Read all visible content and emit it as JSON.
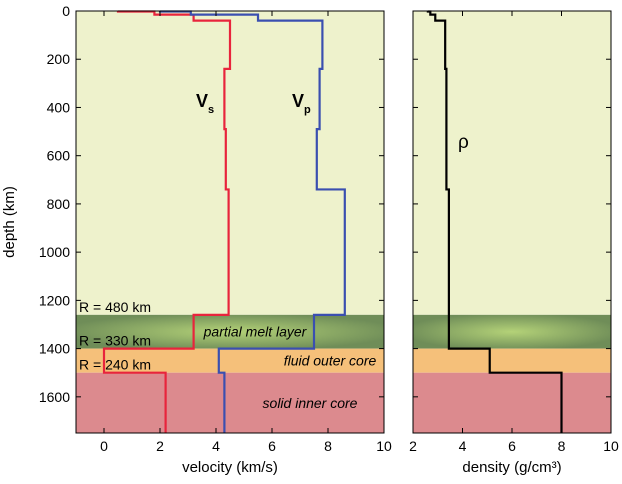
{
  "chart_data": [
    {
      "type": "line",
      "panel": "velocity",
      "xlabel": "velocity (km/s)",
      "ylabel": "depth (km)",
      "xlim": [
        -1,
        10
      ],
      "ylim": [
        1750,
        0
      ],
      "xticks": [
        0,
        2,
        4,
        6,
        8,
        10
      ],
      "yticks": [
        0,
        200,
        400,
        600,
        800,
        1000,
        1200,
        1400,
        1600
      ],
      "grid": false,
      "series": [
        {
          "name": "V",
          "subscript": "s",
          "color": "#e8243c",
          "profile_depths": [
            0,
            2,
            2,
            15,
            15,
            40,
            40,
            240,
            240,
            490,
            490,
            740,
            740,
            1260,
            1260,
            1400,
            1400,
            1500,
            1500,
            1750
          ],
          "profile_values": [
            0.5,
            0.5,
            1.8,
            1.8,
            3.2,
            3.2,
            4.5,
            4.5,
            4.3,
            4.3,
            4.35,
            4.35,
            4.45,
            4.45,
            3.2,
            3.2,
            0.0,
            0.0,
            2.2,
            2.2
          ]
        },
        {
          "name": "V",
          "subscript": "p",
          "color": "#3a4fb0",
          "profile_depths": [
            0,
            2,
            2,
            15,
            15,
            40,
            40,
            240,
            240,
            490,
            490,
            740,
            740,
            1260,
            1260,
            1400,
            1400,
            1500,
            1500,
            1750
          ],
          "profile_values": [
            2.0,
            2.0,
            3.1,
            3.1,
            5.5,
            5.5,
            7.8,
            7.8,
            7.7,
            7.7,
            7.6,
            7.6,
            8.6,
            8.6,
            7.5,
            7.5,
            4.1,
            4.1,
            4.3,
            4.3
          ]
        }
      ]
    },
    {
      "type": "line",
      "panel": "density",
      "xlabel": "density (g/cm³)",
      "xlim": [
        2,
        10
      ],
      "ylim": [
        1750,
        0
      ],
      "xticks": [
        2,
        4,
        6,
        8,
        10
      ],
      "grid": false,
      "series": [
        {
          "name": "ρ",
          "color": "#000000",
          "profile_depths": [
            0,
            2,
            2,
            15,
            15,
            40,
            40,
            240,
            240,
            740,
            740,
            1400,
            1400,
            1500,
            1500,
            1750
          ],
          "profile_values": [
            2.6,
            2.6,
            2.7,
            2.7,
            2.9,
            2.9,
            3.3,
            3.3,
            3.35,
            3.35,
            3.45,
            3.45,
            5.1,
            5.1,
            8.0,
            8.0
          ]
        }
      ]
    }
  ],
  "layers": [
    {
      "key": "upper",
      "label": "",
      "radius_label": "",
      "depth_top": 0,
      "depth_bottom": 1260,
      "color": "#eef2cc"
    },
    {
      "key": "melt",
      "label": "partial melt layer",
      "radius_label": "R = 480 km",
      "depth_top": 1260,
      "depth_bottom": 1400,
      "color": "#6f8d58"
    },
    {
      "key": "outer_core",
      "label": "fluid outer core",
      "radius_label": "R = 330 km",
      "depth_top": 1400,
      "depth_bottom": 1500,
      "color": "#f5c07a"
    },
    {
      "key": "inner_core",
      "label": "solid inner core",
      "radius_label": "R = 240 km",
      "depth_top": 1500,
      "depth_bottom": 1750,
      "color": "#dc8a8e"
    }
  ],
  "colors": {
    "melt_glow": "#b4d278",
    "axis": "#000000"
  }
}
